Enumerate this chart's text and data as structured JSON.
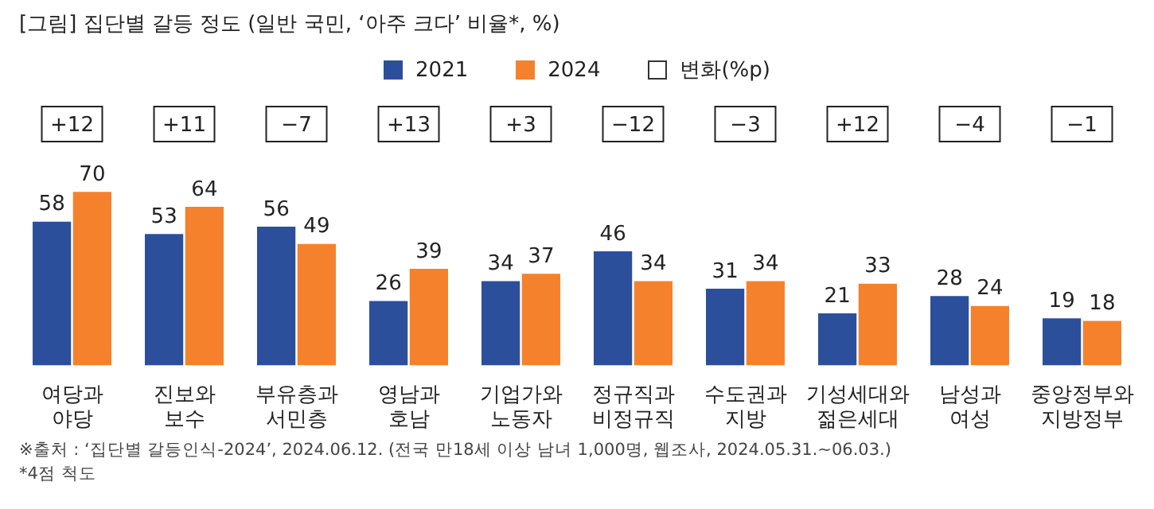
{
  "chart_data": {
    "type": "bar",
    "title": "[그림] 집단별 갈등 정도 (일반 국민, ‘아주 크다’ 비율*, %)",
    "categories": [
      "여당과 야당",
      "진보와 보수",
      "부유층과 서민층",
      "영남과 호남",
      "기업가와 노동자",
      "정규직과 비정규직",
      "수도권과 지방",
      "기성세대와 젊은세대",
      "남성과 여성",
      "중앙정부와 지방정부"
    ],
    "series": [
      {
        "name": "2021",
        "color": "#2b4f9b",
        "values": [
          58,
          53,
          56,
          26,
          34,
          46,
          31,
          21,
          28,
          19
        ]
      },
      {
        "name": "2024",
        "color": "#f5812d",
        "values": [
          70,
          64,
          49,
          39,
          37,
          34,
          34,
          33,
          24,
          18
        ]
      }
    ],
    "legend_title": "변화(%p)",
    "data_labels": true,
    "legend": "top",
    "grid": false,
    "tick_labels": "x",
    "annotations": [
      "+12",
      "+11",
      "−7",
      "+13",
      "+3",
      "−12",
      "−3",
      "+12",
      "−4",
      "−1",
      "※출처 : ‘집단별 갈등인식-2024’, 2024.06.12. (전국 만18세 이상 남녀 1,000명, 웹조사, 2024.05.31.~06.03.)",
      "*4점 척도"
    ]
  }
}
